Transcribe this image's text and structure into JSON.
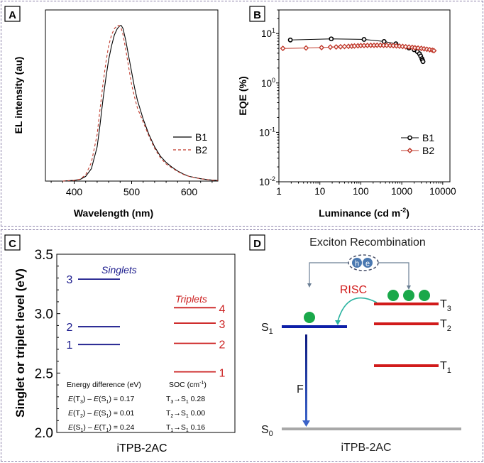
{
  "panels": {
    "A": {
      "label": "A"
    },
    "B": {
      "label": "B"
    },
    "C": {
      "label": "C"
    },
    "D": {
      "label": "D"
    }
  },
  "chart_data": [
    {
      "id": "A",
      "type": "line",
      "title": "",
      "xlabel": "Wavelength (nm)",
      "ylabel": "EL intensity (au)",
      "xlim": [
        350,
        650
      ],
      "ylim": [
        0,
        1.1
      ],
      "xticks": [
        400,
        500,
        600
      ],
      "xtick_labels": [
        "400",
        "500",
        "600"
      ],
      "legend": "center-right",
      "series": [
        {
          "name": "B1",
          "style": "solid",
          "color": "#000000",
          "x": [
            380,
            400,
            410,
            420,
            430,
            440,
            445,
            450,
            455,
            460,
            465,
            470,
            475,
            480,
            482,
            485,
            490,
            495,
            500,
            505,
            510,
            520,
            530,
            540,
            550,
            560,
            570,
            580,
            590,
            600,
            620,
            640,
            650
          ],
          "y": [
            0.0,
            0.005,
            0.01,
            0.03,
            0.08,
            0.22,
            0.36,
            0.52,
            0.66,
            0.78,
            0.87,
            0.94,
            0.98,
            1.0,
            1.0,
            0.98,
            0.9,
            0.8,
            0.7,
            0.6,
            0.52,
            0.4,
            0.3,
            0.22,
            0.16,
            0.12,
            0.09,
            0.065,
            0.045,
            0.03,
            0.015,
            0.006,
            0.004
          ]
        },
        {
          "name": "B2",
          "style": "dashed",
          "color": "#c0392b",
          "x": [
            380,
            400,
            410,
            420,
            430,
            440,
            445,
            450,
            455,
            460,
            465,
            470,
            475,
            478,
            482,
            485,
            490,
            495,
            500,
            505,
            510,
            520,
            530,
            540,
            550,
            560,
            570,
            580,
            590,
            600,
            620,
            640,
            650
          ],
          "y": [
            0.0,
            0.005,
            0.012,
            0.04,
            0.12,
            0.3,
            0.46,
            0.62,
            0.76,
            0.87,
            0.94,
            0.98,
            1.0,
            1.0,
            0.98,
            0.94,
            0.84,
            0.73,
            0.62,
            0.54,
            0.47,
            0.38,
            0.29,
            0.21,
            0.15,
            0.11,
            0.085,
            0.062,
            0.043,
            0.03,
            0.015,
            0.006,
            0.004
          ]
        }
      ]
    },
    {
      "id": "B",
      "type": "scatter",
      "title": "",
      "xlabel": "Luminance (cd m",
      "xlabel_sup": "-2",
      "xlabel_end": ")",
      "ylabel": "EQE (%)",
      "xscale": "log",
      "yscale": "log",
      "xlim": [
        1,
        15000
      ],
      "ylim": [
        0.01,
        30
      ],
      "xticks": [
        1,
        10,
        100,
        1000,
        10000
      ],
      "xtick_labels": [
        "1",
        "10",
        "100",
        "1000",
        "10000"
      ],
      "yticks": [
        0.01,
        0.1,
        1,
        10
      ],
      "ytick_labels": [
        {
          "base": "10",
          "exp": "-2"
        },
        {
          "base": "10",
          "exp": "-1"
        },
        {
          "base": "10",
          "exp": "0"
        },
        {
          "base": "10",
          "exp": "1"
        }
      ],
      "legend": "lower-right",
      "series": [
        {
          "name": "B1",
          "marker": "circle",
          "color": "#000000",
          "x": [
            1.9,
            19,
            120,
            370,
            720,
            1500,
            2000,
            2400,
            2700,
            2900,
            3100,
            3200,
            3300
          ],
          "y": [
            7.4,
            7.8,
            7.6,
            6.9,
            6.2,
            5.1,
            4.7,
            4.3,
            3.9,
            3.5,
            3.1,
            2.9,
            2.7
          ]
        },
        {
          "name": "B2",
          "marker": "diamond",
          "color": "#c0392b",
          "x": [
            1.25,
            4.6,
            11,
            18,
            25,
            32,
            40,
            50,
            60,
            70,
            85,
            100,
            120,
            145,
            175,
            210,
            250,
            300,
            360,
            430,
            520,
            620,
            740,
            880,
            1050,
            1250,
            1500,
            1800,
            2100,
            2500,
            3000,
            3500,
            4100,
            4800,
            5600,
            6100
          ],
          "y": [
            5.0,
            5.1,
            5.2,
            5.3,
            5.35,
            5.4,
            5.45,
            5.5,
            5.55,
            5.6,
            5.65,
            5.7,
            5.72,
            5.74,
            5.76,
            5.77,
            5.78,
            5.78,
            5.77,
            5.75,
            5.72,
            5.68,
            5.62,
            5.55,
            5.48,
            5.4,
            5.32,
            5.24,
            5.16,
            5.08,
            5.0,
            4.9,
            4.8,
            4.7,
            4.6,
            4.5
          ]
        }
      ]
    },
    {
      "id": "C",
      "type": "energy-levels",
      "ylabel": "Singlet or triplet level (eV)",
      "xlabel": "iTPB-2AC",
      "ylim": [
        2.0,
        3.5
      ],
      "yticks": [
        2.0,
        2.5,
        3.0,
        3.5
      ],
      "ytick_labels": [
        "2.0",
        "2.5",
        "3.0",
        "3.5"
      ],
      "singlets": {
        "label": "Singlets",
        "color": "#1a1a8c",
        "levels": [
          {
            "n": "1",
            "eV": 2.74
          },
          {
            "n": "2",
            "eV": 2.89
          },
          {
            "n": "3",
            "eV": 3.29
          }
        ]
      },
      "triplets": {
        "label": "Triplets",
        "color": "#cc2222",
        "levels": [
          {
            "n": "1",
            "eV": 2.51
          },
          {
            "n": "2",
            "eV": 2.75
          },
          {
            "n": "3",
            "eV": 2.92
          },
          {
            "n": "4",
            "eV": 3.05
          }
        ]
      },
      "table": {
        "energy_header": "Energy difference (eV)",
        "soc_header": "SOC (cm",
        "soc_header_sup": "-1",
        "soc_header_end": ")",
        "rows": [
          {
            "a": "T",
            "as": "3",
            "b": "S",
            "bs": "1",
            "value": "0.17",
            "soc_from": "T",
            "soc_from_sub": "3",
            "soc_to": "S",
            "soc_to_sub": "1",
            "soc": "0.28"
          },
          {
            "a": "T",
            "as": "2",
            "b": "S",
            "bs": "1",
            "value": "0.01",
            "soc_from": "T",
            "soc_from_sub": "2",
            "soc_to": "S",
            "soc_to_sub": "1",
            "soc": "0.00"
          },
          {
            "a": "S",
            "as": "1",
            "b": "T",
            "bs": "1",
            "value": "0.24",
            "soc_from": "T",
            "soc_from_sub": "1",
            "soc_to": "S",
            "soc_to_sub": "1",
            "soc": "0.16"
          }
        ]
      }
    }
  ],
  "diagram": {
    "title": "Exciton Recombination",
    "hole_label": "h",
    "electron_label": "e",
    "risc_label": "RISC",
    "f_label": "F",
    "compound": "iTPB-2AC",
    "levels": {
      "S1": {
        "base": "S",
        "sub": "1"
      },
      "S0": {
        "base": "S",
        "sub": "0"
      },
      "T1": {
        "base": "T",
        "sub": "1"
      },
      "T2": {
        "base": "T",
        "sub": "2"
      },
      "T3": {
        "base": "T",
        "sub": "3"
      }
    },
    "colors": {
      "singlet": "#0d1fa8",
      "triplet": "#d11b1b",
      "ground": "#a8a8a8",
      "exciton": "#1aa84a",
      "risc_arrow": "#2ab3a0",
      "charge": "#4a78b0"
    }
  }
}
